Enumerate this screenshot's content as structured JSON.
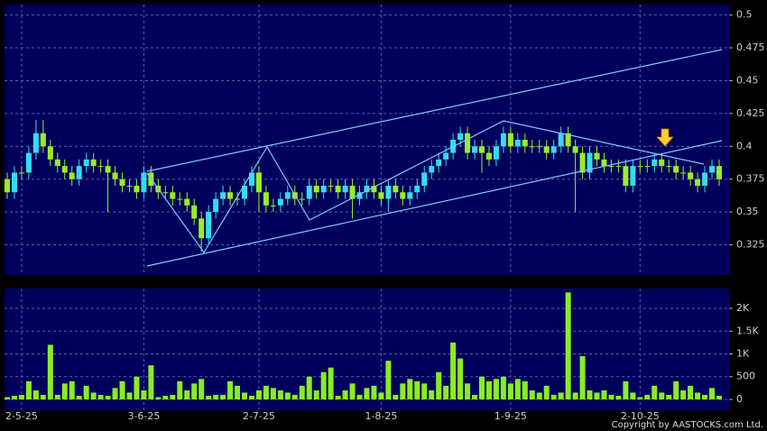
{
  "chart_data": {
    "type": "candlestick",
    "categories": [
      null,
      null,
      "2-5-25",
      null,
      null,
      null,
      null,
      null,
      null,
      null,
      null,
      null,
      null,
      null,
      null,
      null,
      null,
      null,
      null,
      "3-6-25",
      null,
      null,
      null,
      null,
      null,
      null,
      null,
      null,
      null,
      null,
      null,
      null,
      null,
      null,
      null,
      "2-7-25",
      null,
      null,
      null,
      null,
      null,
      null,
      null,
      null,
      null,
      null,
      null,
      null,
      null,
      null,
      null,
      null,
      "1-8-25",
      null,
      null,
      null,
      null,
      null,
      null,
      null,
      null,
      null,
      null,
      null,
      null,
      null,
      null,
      null,
      null,
      null,
      "1-9-25",
      null,
      null,
      null,
      null,
      null,
      null,
      null,
      null,
      null,
      null,
      null,
      null,
      null,
      null,
      null,
      null,
      null,
      "2-10-25",
      null,
      null,
      null,
      null,
      null,
      null,
      null,
      null,
      null,
      null,
      null
    ],
    "open": [
      0.375,
      0.365,
      0.38,
      0.38,
      0.395,
      0.41,
      0.4,
      0.39,
      0.385,
      0.38,
      0.375,
      0.385,
      0.39,
      0.385,
      0.385,
      0.38,
      0.375,
      0.37,
      0.37,
      0.365,
      0.38,
      0.37,
      0.365,
      0.365,
      0.36,
      0.36,
      0.355,
      0.345,
      0.33,
      0.35,
      0.36,
      0.365,
      0.36,
      0.36,
      0.37,
      0.38,
      0.365,
      0.355,
      0.355,
      0.36,
      0.365,
      0.36,
      0.36,
      0.37,
      0.365,
      0.37,
      0.37,
      0.365,
      0.37,
      0.36,
      0.365,
      0.37,
      0.365,
      0.36,
      0.37,
      0.365,
      0.36,
      0.365,
      0.37,
      0.38,
      0.385,
      0.39,
      0.395,
      0.405,
      0.41,
      0.395,
      0.4,
      0.395,
      0.39,
      0.4,
      0.41,
      0.4,
      0.405,
      0.4,
      0.4,
      0.4,
      0.395,
      0.4,
      0.41,
      0.4,
      0.395,
      0.38,
      0.395,
      0.39,
      0.385,
      0.385,
      0.385,
      0.37,
      0.385,
      0.385,
      0.385,
      0.39,
      0.385,
      0.385,
      0.38,
      0.38,
      0.375,
      0.37,
      0.38,
      0.385
    ],
    "high": [
      0.38,
      0.385,
      0.385,
      0.4,
      0.42,
      0.42,
      0.405,
      0.395,
      0.39,
      0.385,
      0.39,
      0.395,
      0.395,
      0.39,
      0.39,
      0.385,
      0.38,
      0.375,
      0.375,
      0.385,
      0.385,
      0.375,
      0.37,
      0.37,
      0.365,
      0.365,
      0.36,
      0.35,
      0.355,
      0.365,
      0.37,
      0.37,
      0.365,
      0.375,
      0.385,
      0.385,
      0.37,
      0.36,
      0.365,
      0.37,
      0.37,
      0.365,
      0.375,
      0.375,
      0.375,
      0.375,
      0.375,
      0.375,
      0.375,
      0.37,
      0.375,
      0.375,
      0.37,
      0.375,
      0.375,
      0.37,
      0.37,
      0.375,
      0.385,
      0.39,
      0.395,
      0.4,
      0.41,
      0.415,
      0.415,
      0.405,
      0.405,
      0.4,
      0.405,
      0.415,
      0.415,
      0.41,
      0.41,
      0.405,
      0.405,
      0.405,
      0.405,
      0.415,
      0.415,
      0.405,
      0.4,
      0.4,
      0.4,
      0.395,
      0.39,
      0.39,
      0.39,
      0.39,
      0.39,
      0.39,
      0.395,
      0.395,
      0.39,
      0.39,
      0.385,
      0.385,
      0.38,
      0.385,
      0.39,
      0.39
    ],
    "low": [
      0.36,
      0.36,
      0.375,
      0.375,
      0.39,
      0.395,
      0.385,
      0.38,
      0.375,
      0.37,
      0.37,
      0.38,
      0.38,
      0.38,
      0.35,
      0.37,
      0.365,
      0.365,
      0.36,
      0.36,
      0.365,
      0.36,
      0.36,
      0.355,
      0.355,
      0.35,
      0.34,
      0.32,
      0.325,
      0.345,
      0.355,
      0.355,
      0.355,
      0.355,
      0.365,
      0.35,
      0.35,
      0.35,
      0.35,
      0.355,
      0.355,
      0.355,
      0.355,
      0.36,
      0.36,
      0.365,
      0.36,
      0.36,
      0.345,
      0.355,
      0.36,
      0.36,
      0.355,
      0.35,
      0.36,
      0.355,
      0.355,
      0.36,
      0.365,
      0.375,
      0.38,
      0.385,
      0.39,
      0.4,
      0.39,
      0.39,
      0.38,
      0.385,
      0.385,
      0.395,
      0.395,
      0.395,
      0.395,
      0.395,
      0.395,
      0.39,
      0.39,
      0.395,
      0.395,
      0.35,
      0.375,
      0.375,
      0.385,
      0.38,
      0.38,
      0.38,
      0.365,
      0.365,
      0.38,
      0.38,
      0.38,
      0.38,
      0.38,
      0.375,
      0.375,
      0.37,
      0.365,
      0.365,
      0.375,
      0.37
    ],
    "close": [
      0.365,
      0.38,
      0.38,
      0.395,
      0.41,
      0.4,
      0.39,
      0.385,
      0.38,
      0.375,
      0.385,
      0.39,
      0.385,
      0.385,
      0.38,
      0.375,
      0.37,
      0.37,
      0.365,
      0.38,
      0.37,
      0.365,
      0.365,
      0.36,
      0.36,
      0.355,
      0.345,
      0.33,
      0.35,
      0.36,
      0.365,
      0.36,
      0.36,
      0.37,
      0.38,
      0.365,
      0.355,
      0.355,
      0.36,
      0.365,
      0.36,
      0.36,
      0.37,
      0.365,
      0.37,
      0.37,
      0.365,
      0.37,
      0.36,
      0.365,
      0.37,
      0.365,
      0.36,
      0.37,
      0.365,
      0.36,
      0.365,
      0.37,
      0.38,
      0.385,
      0.39,
      0.395,
      0.405,
      0.41,
      0.395,
      0.4,
      0.395,
      0.39,
      0.4,
      0.41,
      0.4,
      0.405,
      0.4,
      0.4,
      0.4,
      0.395,
      0.4,
      0.41,
      0.4,
      0.395,
      0.38,
      0.395,
      0.39,
      0.385,
      0.385,
      0.385,
      0.37,
      0.385,
      0.385,
      0.385,
      0.39,
      0.385,
      0.385,
      0.38,
      0.38,
      0.375,
      0.37,
      0.38,
      0.385,
      0.375
    ],
    "volume": [
      50,
      80,
      100,
      400,
      200,
      100,
      1200,
      100,
      350,
      400,
      80,
      300,
      150,
      100,
      80,
      250,
      400,
      150,
      500,
      200,
      750,
      50,
      80,
      100,
      400,
      200,
      350,
      450,
      80,
      100,
      100,
      400,
      300,
      150,
      80,
      200,
      300,
      250,
      200,
      150,
      100,
      300,
      500,
      200,
      600,
      700,
      80,
      200,
      350,
      100,
      250,
      300,
      150,
      850,
      100,
      350,
      450,
      400,
      350,
      200,
      600,
      300,
      1250,
      900,
      350,
      100,
      500,
      400,
      450,
      500,
      350,
      450,
      400,
      200,
      150,
      300,
      100,
      150,
      2350,
      150,
      950,
      200,
      150,
      200,
      100,
      80,
      400,
      150,
      50,
      100,
      300,
      150,
      100,
      400,
      200,
      300,
      150,
      100,
      250,
      80
    ],
    "up_color": "#33ddee",
    "down_color": "#99ee22",
    "volume_color": "#88ee22",
    "ylim": [
      0.302,
      0.508
    ],
    "yticks": [
      0.325,
      0.35,
      0.375,
      0.4,
      0.425,
      0.45,
      0.475,
      0.5
    ],
    "y2lim": [
      -238,
      2436
    ],
    "y2ticks": [
      0,
      500,
      {
        "value": 1000,
        "label": "1K"
      },
      {
        "value": 1500,
        "label": "1.5K"
      },
      {
        "value": 2000,
        "label": "2K"
      }
    ],
    "grid": true,
    "copyright": "Copyright by AASTOCKS.com Ltd."
  }
}
